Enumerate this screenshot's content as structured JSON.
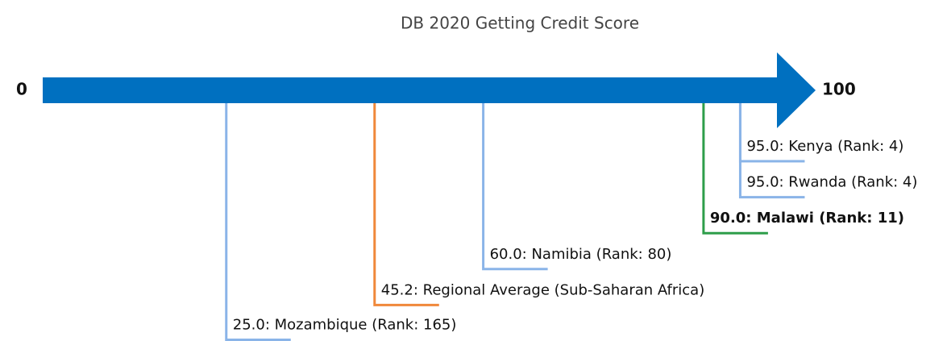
{
  "chart_data": {
    "type": "number_line",
    "title": "DB 2020 Getting Credit Score",
    "xlim": [
      0,
      100
    ],
    "xticks": [
      0,
      100
    ],
    "axis_color": "#0070c0",
    "values": [
      95.0,
      95.0,
      90.0,
      60.0,
      45.2,
      25.0
    ],
    "value_labels": [
      "95.0: Kenya (Rank: 4)",
      "95.0: Rwanda (Rank: 4)",
      "90.0: Malawi (Rank: 11)",
      "60.0: Namibia (Rank: 80)",
      "45.2: Regional Average (Sub-Saharan Africa)",
      "25.0: Mozambique (Rank: 165)"
    ],
    "colors": [
      "#8ab4e8",
      "#8ab4e8",
      "#2e9e4a",
      "#8ab4e8",
      "#f0883a",
      "#8ab4e8"
    ],
    "bold": [
      false,
      false,
      true,
      false,
      false,
      false
    ]
  }
}
